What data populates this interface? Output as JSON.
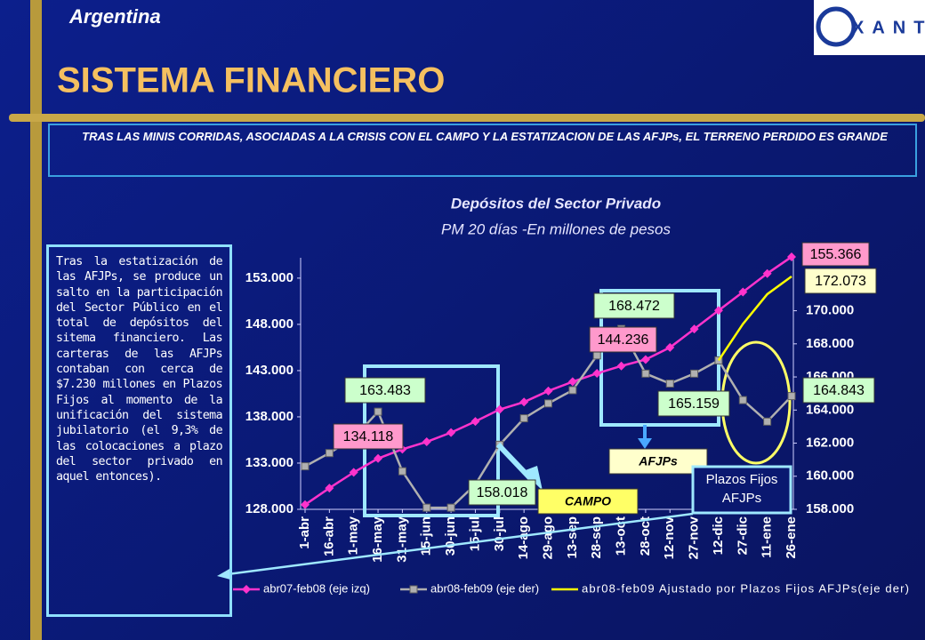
{
  "header": {
    "country": "Argentina",
    "title": "SISTEMA FINANCIERO",
    "logo": "XANTE",
    "subtitle": "TRAS LAS MINIS CORRIDAS, ASOCIADAS A LA CRISIS CON EL CAMPO Y LA ESTATIZACION DE LAS AFJPs, EL TERRENO PERDIDO ES GRANDE"
  },
  "sidebar": "Tras la estatización de las AFJPs, se produce un salto en la participación del Sector Público en el total de depósitos del sitema financiero. Las carteras de las AFJPs contaban con cerca de $7.230 millones en Plazos Fijos al momento de la unificación del sistema jubilatorio (el 9,3% de las colocaciones a plazo del sector privado en aquel entonces).",
  "chart_data": {
    "type": "line",
    "title": "Depósitos del Sector Privado",
    "subtitle": "PM 20 días -En millones de pesos",
    "categories": [
      "1-abr",
      "16-abr",
      "1-may",
      "16-may",
      "31-may",
      "15-jun",
      "30-jun",
      "15-jul",
      "30-jul",
      "14-ago",
      "29-ago",
      "13-sep",
      "28-sep",
      "13-oct",
      "28-oct",
      "12-nov",
      "27-nov",
      "12-dic",
      "27-dic",
      "11-ene",
      "26-ene"
    ],
    "ylim": [
      128000,
      155200
    ],
    "yticks": [
      {
        "value": 128000,
        "label": "128.000"
      },
      {
        "value": 133000,
        "label": "133.000"
      },
      {
        "value": 138000,
        "label": "138.000"
      },
      {
        "value": 143000,
        "label": "143.000"
      },
      {
        "value": 148000,
        "label": "148.000"
      },
      {
        "value": 153000,
        "label": "153.000"
      }
    ],
    "y2lim": [
      158000,
      173200
    ],
    "y2ticks": [
      {
        "value": 158000,
        "label": "158.000"
      },
      {
        "value": 160000,
        "label": "160.000"
      },
      {
        "value": 162000,
        "label": "162.000"
      },
      {
        "value": 164000,
        "label": "164.000"
      },
      {
        "value": 166000,
        "label": "166.000"
      },
      {
        "value": 168000,
        "label": "168.000"
      },
      {
        "value": 170000,
        "label": "170.000"
      }
    ],
    "series": [
      {
        "name": "abr07-feb08 (eje izq)",
        "color": "#ff33cc",
        "marker": "diamond",
        "values": [
          128500,
          130300,
          132000,
          133500,
          134500,
          135300,
          136300,
          137500,
          138800,
          139600,
          140800,
          141800,
          142700,
          143500,
          144200,
          145500,
          147500,
          149500,
          151500,
          153500,
          155300
        ]
      },
      {
        "name": "abr08-feb09 (eje der)",
        "color": "#b0b0b0",
        "marker": "square",
        "axis": "y2",
        "values": [
          160600,
          161400,
          162300,
          163900,
          160300,
          158100,
          158100,
          159500,
          161900,
          163500,
          164400,
          165200,
          167300,
          168900,
          166200,
          165600,
          166200,
          167000,
          164600,
          163300,
          164843
        ]
      },
      {
        "name": "abr08-feb09 Ajustado por Plazos Fijos AFJPs(eje der)",
        "color": "#ffff00",
        "axis": "y2",
        "values": [
          null,
          null,
          null,
          null,
          null,
          null,
          null,
          null,
          null,
          null,
          null,
          null,
          null,
          null,
          null,
          null,
          null,
          167000,
          169200,
          171000,
          172073
        ]
      }
    ],
    "annotations": [
      "155.366",
      "172.073",
      "168.472",
      "144.236",
      "163.483",
      "134.118",
      "158.018",
      "165.159",
      "164.843",
      "AFJPs",
      "CAMPO",
      "Plazos Fijos AFJPs"
    ]
  }
}
